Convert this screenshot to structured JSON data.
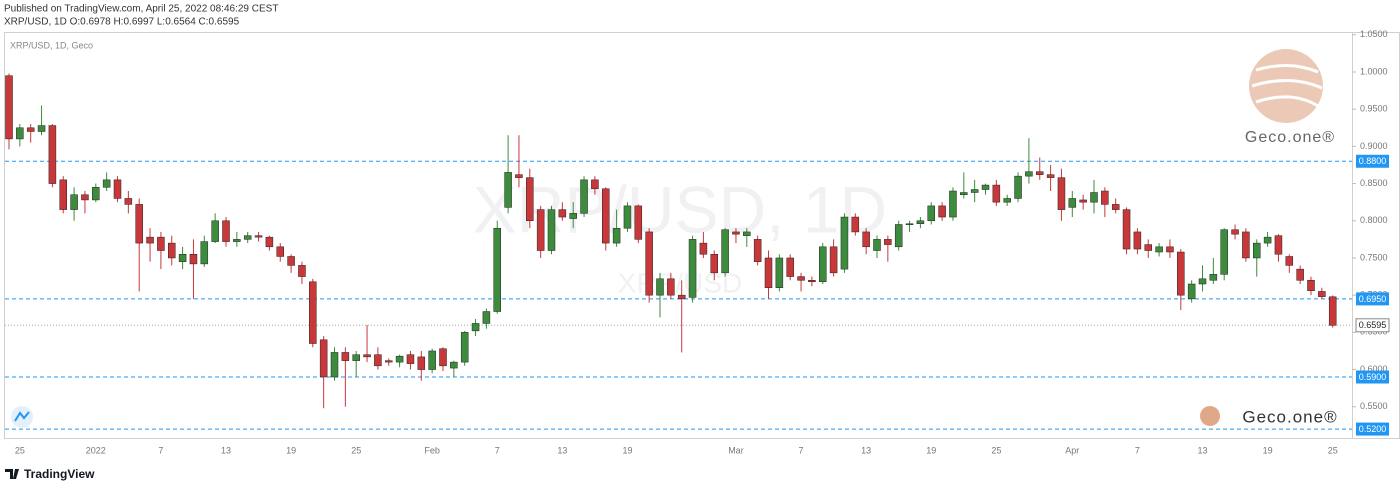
{
  "header": {
    "published": "Published on TradingView.com, April 25, 2022 08:46:29 CEST",
    "ohlc": "XRP/USD, 1D O:0.6978 H:0.6997 L:0.6564 C:0.6595"
  },
  "chart_data": {
    "type": "candlestick",
    "label": "XRP/USD, 1D, Geco",
    "watermark": "XRP/USD, 1D",
    "watermark_sub": "XRP/USD",
    "categories": [
      null,
      "25",
      null,
      null,
      null,
      null,
      null,
      null,
      "2022",
      null,
      null,
      null,
      null,
      null,
      "7",
      null,
      null,
      null,
      null,
      null,
      "13",
      null,
      null,
      null,
      null,
      null,
      "19",
      null,
      null,
      null,
      null,
      null,
      "25",
      null,
      null,
      null,
      null,
      null,
      null,
      "Feb",
      null,
      null,
      null,
      null,
      null,
      "7",
      null,
      null,
      null,
      null,
      null,
      "13",
      null,
      null,
      null,
      null,
      null,
      "19",
      null,
      null,
      null,
      null,
      null,
      null,
      null,
      null,
      null,
      "Mar",
      null,
      null,
      null,
      null,
      null,
      "7",
      null,
      null,
      null,
      null,
      null,
      "13",
      null,
      null,
      null,
      null,
      null,
      "19",
      null,
      null,
      null,
      null,
      null,
      "25",
      null,
      null,
      null,
      null,
      null,
      null,
      "Apr",
      null,
      null,
      null,
      null,
      null,
      "7",
      null,
      null,
      null,
      null,
      null,
      "13",
      null,
      null,
      null,
      null,
      null,
      "19",
      null,
      null,
      null,
      null,
      null,
      "25"
    ],
    "open": [
      0.995,
      0.91,
      0.925,
      0.92,
      0.928,
      0.855,
      0.815,
      0.835,
      0.828,
      0.845,
      0.855,
      0.83,
      0.822,
      0.778,
      0.778,
      0.77,
      0.745,
      0.755,
      0.742,
      0.772,
      0.8,
      0.772,
      0.775,
      0.78,
      0.778,
      0.765,
      0.752,
      0.74,
      0.718,
      0.64,
      0.59,
      0.623,
      0.612,
      0.62,
      0.62,
      0.612,
      0.61,
      0.62,
      0.617,
      0.6,
      0.628,
      0.602,
      0.61,
      0.652,
      0.662,
      0.678,
      0.818,
      0.862,
      0.858,
      0.815,
      0.76,
      0.815,
      0.803,
      0.81,
      0.855,
      0.843,
      0.77,
      0.79,
      0.82,
      0.785,
      0.7,
      0.722,
      0.7,
      0.697,
      0.77,
      0.755,
      0.73,
      0.785,
      0.78,
      0.775,
      0.75,
      0.71,
      0.75,
      0.725,
      0.72,
      0.718,
      0.765,
      0.735,
      0.805,
      0.785,
      0.76,
      0.775,
      0.765,
      0.795,
      0.796,
      0.8,
      0.82,
      0.805,
      0.835,
      0.838,
      0.842,
      0.848,
      0.825,
      0.83,
      0.86,
      0.866,
      0.862,
      0.858,
      0.818,
      0.828,
      0.825,
      0.84,
      0.822,
      0.815,
      0.785,
      0.768,
      0.758,
      0.765,
      0.758,
      0.695,
      0.715,
      0.72,
      0.728,
      0.788,
      0.785,
      0.75,
      0.77,
      0.78,
      0.752,
      0.735,
      0.72,
      0.705,
      0.6978
    ],
    "high": [
      0.998,
      0.93,
      0.93,
      0.955,
      0.93,
      0.86,
      0.845,
      0.84,
      0.85,
      0.865,
      0.86,
      0.84,
      0.83,
      0.79,
      0.785,
      0.78,
      0.765,
      0.775,
      0.78,
      0.81,
      0.805,
      0.785,
      0.785,
      0.785,
      0.78,
      0.77,
      0.755,
      0.745,
      0.722,
      0.645,
      0.63,
      0.63,
      0.625,
      0.66,
      0.63,
      0.615,
      0.62,
      0.625,
      0.625,
      0.628,
      0.63,
      0.612,
      0.652,
      0.668,
      0.682,
      0.8,
      0.915,
      0.915,
      0.87,
      0.82,
      0.82,
      0.825,
      0.825,
      0.86,
      0.86,
      0.845,
      0.815,
      0.825,
      0.822,
      0.79,
      0.73,
      0.73,
      0.72,
      0.78,
      0.785,
      0.76,
      0.79,
      0.79,
      0.79,
      0.78,
      0.76,
      0.755,
      0.755,
      0.73,
      0.725,
      0.77,
      0.775,
      0.81,
      0.81,
      0.79,
      0.78,
      0.78,
      0.8,
      0.8,
      0.805,
      0.825,
      0.825,
      0.845,
      0.865,
      0.855,
      0.85,
      0.855,
      0.835,
      0.865,
      0.911,
      0.885,
      0.875,
      0.87,
      0.84,
      0.835,
      0.855,
      0.845,
      0.83,
      0.818,
      0.79,
      0.775,
      0.77,
      0.775,
      0.762,
      0.72,
      0.74,
      0.75,
      0.79,
      0.795,
      0.79,
      0.775,
      0.785,
      0.782,
      0.755,
      0.74,
      0.725,
      0.71,
      0.6997
    ],
    "low": [
      0.896,
      0.9,
      0.905,
      0.915,
      0.845,
      0.81,
      0.8,
      0.81,
      0.825,
      0.84,
      0.825,
      0.81,
      0.705,
      0.745,
      0.735,
      0.74,
      0.735,
      0.695,
      0.738,
      0.77,
      0.765,
      0.765,
      0.77,
      0.772,
      0.76,
      0.745,
      0.73,
      0.715,
      0.63,
      0.548,
      0.585,
      0.55,
      0.59,
      0.61,
      0.6,
      0.605,
      0.603,
      0.6,
      0.585,
      0.595,
      0.598,
      0.59,
      0.605,
      0.645,
      0.655,
      0.675,
      0.81,
      0.845,
      0.79,
      0.75,
      0.755,
      0.8,
      0.79,
      0.805,
      0.835,
      0.76,
      0.765,
      0.785,
      0.77,
      0.69,
      0.67,
      0.695,
      0.623,
      0.69,
      0.75,
      0.72,
      0.725,
      0.77,
      0.765,
      0.74,
      0.695,
      0.705,
      0.72,
      0.705,
      0.712,
      0.715,
      0.725,
      0.73,
      0.78,
      0.755,
      0.75,
      0.745,
      0.76,
      0.785,
      0.79,
      0.795,
      0.8,
      0.8,
      0.83,
      0.825,
      0.835,
      0.82,
      0.82,
      0.825,
      0.85,
      0.855,
      0.84,
      0.8,
      0.805,
      0.815,
      0.81,
      0.805,
      0.81,
      0.755,
      0.755,
      0.75,
      0.752,
      0.75,
      0.68,
      0.69,
      0.705,
      0.715,
      0.72,
      0.775,
      0.745,
      0.725,
      0.765,
      0.745,
      0.73,
      0.715,
      0.7,
      0.695,
      0.6564
    ],
    "close": [
      0.91,
      0.925,
      0.92,
      0.928,
      0.85,
      0.815,
      0.835,
      0.828,
      0.845,
      0.855,
      0.83,
      0.822,
      0.77,
      0.77,
      0.76,
      0.75,
      0.755,
      0.742,
      0.772,
      0.8,
      0.772,
      0.775,
      0.78,
      0.778,
      0.765,
      0.752,
      0.74,
      0.725,
      0.635,
      0.59,
      0.623,
      0.612,
      0.62,
      0.617,
      0.605,
      0.61,
      0.618,
      0.608,
      0.6,
      0.625,
      0.605,
      0.61,
      0.65,
      0.662,
      0.678,
      0.79,
      0.865,
      0.858,
      0.8,
      0.76,
      0.815,
      0.805,
      0.81,
      0.855,
      0.843,
      0.77,
      0.79,
      0.82,
      0.775,
      0.7,
      0.722,
      0.7,
      0.695,
      0.775,
      0.755,
      0.73,
      0.788,
      0.782,
      0.785,
      0.745,
      0.71,
      0.75,
      0.725,
      0.72,
      0.718,
      0.765,
      0.73,
      0.805,
      0.785,
      0.765,
      0.775,
      0.768,
      0.795,
      0.796,
      0.8,
      0.82,
      0.805,
      0.84,
      0.838,
      0.842,
      0.848,
      0.825,
      0.83,
      0.86,
      0.866,
      0.862,
      0.858,
      0.815,
      0.83,
      0.825,
      0.838,
      0.822,
      0.815,
      0.762,
      0.762,
      0.76,
      0.765,
      0.758,
      0.7,
      0.715,
      0.722,
      0.728,
      0.788,
      0.782,
      0.75,
      0.77,
      0.778,
      0.755,
      0.74,
      0.72,
      0.706,
      0.698,
      0.6595
    ],
    "up_color": "#3d8b3d",
    "down_color": "#c8373a",
    "ylim": [
      0.508,
      1.0524
    ],
    "yticks": [
      {
        "value": 1.05,
        "label": "1.0500"
      },
      {
        "value": 1.0,
        "label": "1.0000"
      },
      {
        "value": 0.95,
        "label": "0.9500"
      },
      {
        "value": 0.9,
        "label": "0.9000"
      },
      {
        "value": 0.85,
        "label": "0.8500"
      },
      {
        "value": 0.8,
        "label": "0.8000"
      },
      {
        "value": 0.75,
        "label": "0.7500"
      },
      {
        "value": 0.7,
        "label": "0.7000"
      },
      {
        "value": 0.65,
        "label": "0.6500"
      },
      {
        "value": 0.6,
        "label": "0.6000"
      },
      {
        "value": 0.55,
        "label": "0.5500"
      }
    ],
    "levels": [
      {
        "value": 0.88,
        "label": "0.8800"
      },
      {
        "value": 0.695,
        "label": "0.6950"
      },
      {
        "value": 0.59,
        "label": "0.5900"
      },
      {
        "value": 0.52,
        "label": "0.5200"
      }
    ],
    "level_color": "#2196f3",
    "last_price": 0.6595
  },
  "brand": "Geco.one®",
  "footer": "TradingView"
}
